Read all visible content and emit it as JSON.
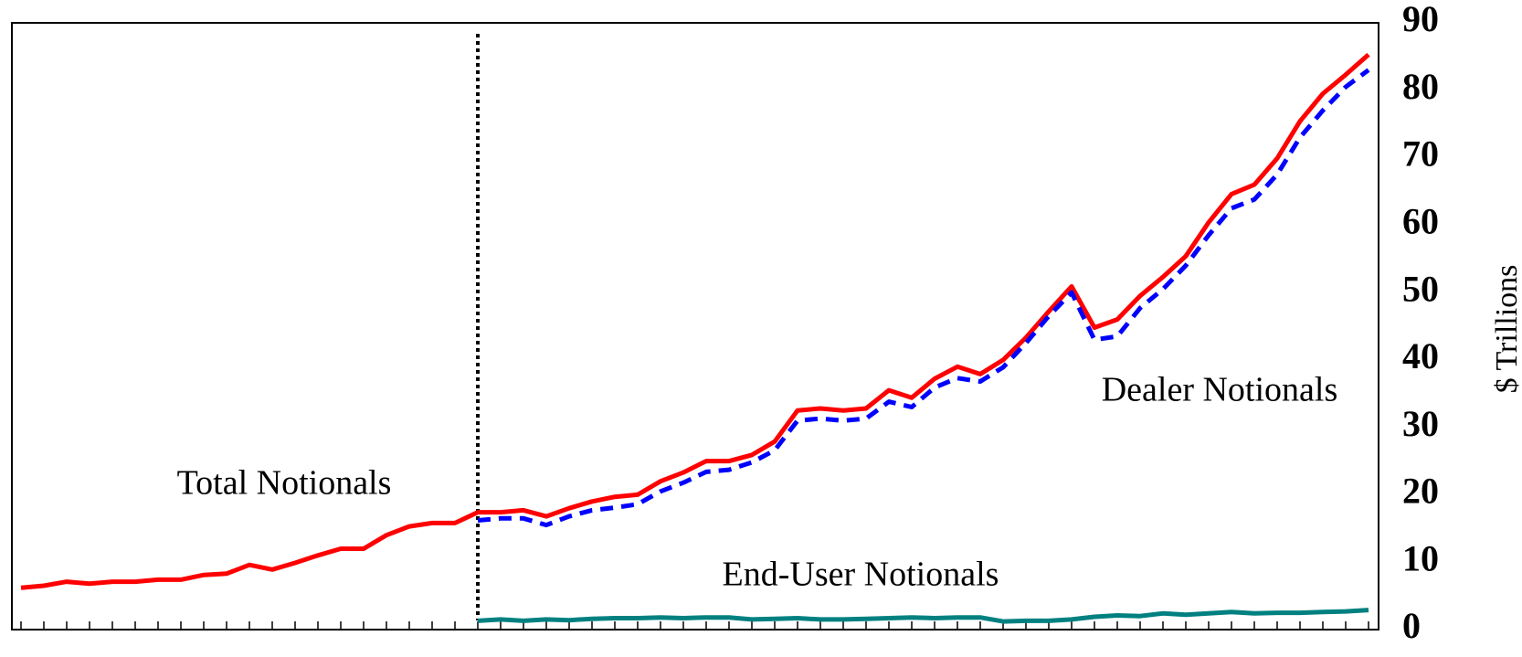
{
  "chart_data": {
    "type": "line",
    "y_label": "$ Trillions",
    "yaxis_side": "right",
    "grid": false,
    "categories": [
      null,
      null,
      null,
      null,
      null,
      null,
      null,
      null,
      null,
      null,
      null,
      null,
      null,
      null,
      null,
      null,
      null,
      null,
      null,
      null,
      null,
      null,
      null,
      null,
      null,
      null,
      null,
      null,
      null,
      null,
      null,
      null,
      null,
      null,
      null,
      null,
      null,
      null,
      null,
      null,
      null,
      null,
      null,
      null,
      null,
      null,
      null,
      null,
      null,
      null,
      null,
      null,
      null,
      null,
      null,
      null,
      null,
      null,
      null,
      null
    ],
    "ylim": [
      0,
      90
    ],
    "yticks": [
      0,
      10,
      20,
      30,
      40,
      50,
      60,
      70,
      80,
      90
    ],
    "series": [
      {
        "name": "Total Notionals",
        "color": "#ff0000",
        "style": "solid",
        "values": [
          6.2,
          6.5,
          7.1,
          6.8,
          7.1,
          7.1,
          7.4,
          7.4,
          8.1,
          8.3,
          9.6,
          8.9,
          9.9,
          11,
          12,
          12,
          14,
          15.3,
          15.8,
          15.8,
          17.4,
          17.4,
          17.7,
          16.8,
          18,
          19,
          19.7,
          20,
          22,
          23.3,
          25,
          25,
          25.9,
          27.9,
          32.5,
          32.8,
          32.5,
          32.8,
          35.5,
          34.4,
          37.2,
          39,
          37.9,
          40,
          43.3,
          47.2,
          50.9,
          44.8,
          46,
          49.5,
          52.3,
          55.4,
          60.4,
          64.6,
          66,
          69.9,
          75.4,
          79.5,
          82.3,
          85.3
        ]
      },
      {
        "name": "Dealer Notionals",
        "color": "#0000ff",
        "style": "dashed",
        "values": [
          null,
          null,
          null,
          null,
          null,
          null,
          null,
          null,
          null,
          null,
          null,
          null,
          null,
          null,
          null,
          null,
          null,
          null,
          null,
          null,
          16.2,
          16.5,
          16.5,
          15.5,
          16.8,
          17.7,
          18.1,
          18.6,
          20.5,
          21.8,
          23.4,
          23.7,
          24.8,
          26.6,
          31,
          31.3,
          31,
          31.3,
          33.8,
          33,
          35.9,
          37.3,
          36.8,
          38.9,
          42.5,
          46.5,
          50,
          43,
          43.5,
          47.7,
          50.5,
          54,
          58.5,
          62.5,
          63.8,
          67.5,
          73,
          77,
          80.5,
          83
        ]
      },
      {
        "name": "End-User Notionals",
        "color": "#008080",
        "style": "solid",
        "values": [
          null,
          null,
          null,
          null,
          null,
          null,
          null,
          null,
          null,
          null,
          null,
          null,
          null,
          null,
          null,
          null,
          null,
          null,
          null,
          null,
          1.3,
          1.5,
          1.3,
          1.5,
          1.4,
          1.6,
          1.7,
          1.7,
          1.8,
          1.7,
          1.8,
          1.8,
          1.5,
          1.6,
          1.7,
          1.5,
          1.5,
          1.6,
          1.7,
          1.8,
          1.7,
          1.8,
          1.8,
          1.2,
          1.3,
          1.3,
          1.5,
          1.9,
          2.1,
          2.0,
          2.4,
          2.2,
          2.4,
          2.6,
          2.4,
          2.5,
          2.5,
          2.6,
          2.7,
          2.9
        ]
      }
    ]
  }
}
